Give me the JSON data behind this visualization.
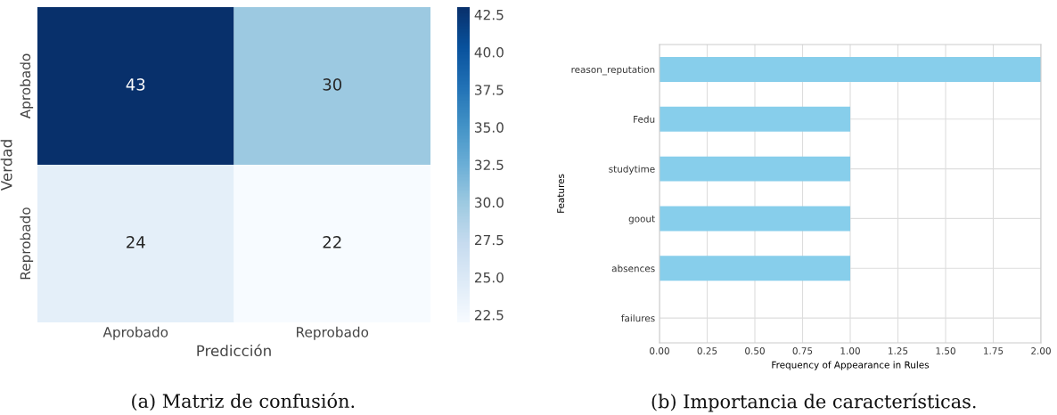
{
  "chart_data": [
    {
      "type": "heatmap",
      "xlabel": "Predicción",
      "ylabel": "Verdad",
      "categories": [
        "Aprobado",
        "Reprobado"
      ],
      "y_categories": [
        "Aprobado",
        "Reprobado"
      ],
      "cells": [
        [
          43,
          30
        ],
        [
          24,
          22
        ]
      ],
      "data_labels": true,
      "clim": [
        22,
        43
      ],
      "cticks": [
        22.5,
        {
          "value": 25,
          "label": "25.0"
        },
        27.5,
        {
          "value": 30,
          "label": "30.0"
        },
        32.5,
        {
          "value": 35,
          "label": "35.0"
        },
        37.5,
        {
          "value": 40,
          "label": "40.0"
        },
        42.5
      ],
      "annotations": [
        "(a) Matriz de confusión."
      ]
    },
    {
      "type": "bar",
      "orientation": "horizontal",
      "xlabel": "Frequency of Appearance in Rules",
      "ylabel": "Features",
      "categories": [
        "reason_reputation",
        "Fedu",
        "studytime",
        "goout",
        "absences",
        "failures"
      ],
      "values": [
        2,
        1,
        1,
        1,
        1,
        0
      ],
      "color": "#87ceeb",
      "xlim": [
        0,
        2.0
      ],
      "xticks": [
        {
          "value": 0,
          "label": "0.00"
        },
        {
          "value": 0.25,
          "label": "0.25"
        },
        {
          "value": 0.5,
          "label": "0.50"
        },
        {
          "value": 0.75,
          "label": "0.75"
        },
        {
          "value": 1.0,
          "label": "1.00"
        },
        {
          "value": 1.25,
          "label": "1.25"
        },
        {
          "value": 1.5,
          "label": "1.50"
        },
        {
          "value": 1.75,
          "label": "1.75"
        },
        {
          "value": 2.0,
          "label": "2.00"
        }
      ],
      "grid": true,
      "annotations": [
        "(b) Importancia de características."
      ]
    }
  ]
}
